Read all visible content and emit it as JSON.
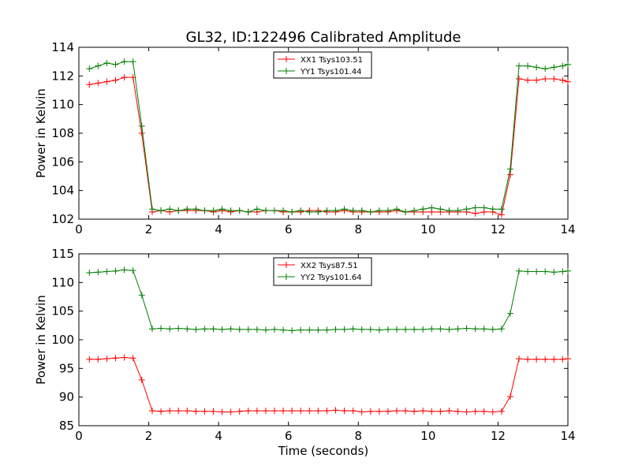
{
  "title": "GL32, ID:122496 Calibrated Amplitude",
  "colors": {
    "red": "#ff0000",
    "green": "#007f00"
  },
  "chart_data": [
    {
      "type": "line",
      "title": "GL32, ID:122496 Calibrated Amplitude",
      "xlabel": "",
      "ylabel": "Power in Kelvin",
      "xlim": [
        0,
        14
      ],
      "ylim": [
        102,
        114
      ],
      "xticks": [
        "0",
        "2",
        "4",
        "6",
        "8",
        "10",
        "12",
        "14"
      ],
      "yticks": [
        "102",
        "104",
        "106",
        "108",
        "110",
        "112",
        "114"
      ],
      "legend_position": "top-center",
      "x": [
        0.3,
        0.55,
        0.8,
        1.05,
        1.3,
        1.55,
        1.8,
        2.1,
        2.35,
        2.6,
        2.85,
        3.1,
        3.35,
        3.6,
        3.85,
        4.1,
        4.35,
        4.6,
        4.85,
        5.1,
        5.35,
        5.6,
        5.85,
        6.1,
        6.35,
        6.6,
        6.85,
        7.1,
        7.35,
        7.6,
        7.85,
        8.1,
        8.35,
        8.6,
        8.85,
        9.1,
        9.35,
        9.6,
        9.85,
        10.1,
        10.35,
        10.6,
        10.85,
        11.1,
        11.35,
        11.6,
        11.85,
        12.1,
        12.35,
        12.6,
        12.85,
        13.1,
        13.35,
        13.6,
        13.85,
        14.0
      ],
      "series": [
        {
          "name": "XX1 Tsys103.51",
          "color": "#ff0000",
          "values": [
            111.4,
            111.5,
            111.6,
            111.7,
            111.9,
            111.9,
            108.0,
            102.5,
            102.6,
            102.5,
            102.6,
            102.6,
            102.6,
            102.6,
            102.5,
            102.6,
            102.5,
            102.6,
            102.5,
            102.5,
            102.6,
            102.6,
            102.5,
            102.5,
            102.5,
            102.6,
            102.6,
            102.5,
            102.5,
            102.6,
            102.5,
            102.5,
            102.5,
            102.5,
            102.5,
            102.6,
            102.5,
            102.5,
            102.5,
            102.5,
            102.5,
            102.5,
            102.5,
            102.5,
            102.4,
            102.5,
            102.5,
            102.3,
            105.1,
            111.8,
            111.7,
            111.7,
            111.8,
            111.8,
            111.7,
            111.6
          ]
        },
        {
          "name": "YY1 Tsys101.44",
          "color": "#007f00",
          "values": [
            112.5,
            112.7,
            112.9,
            112.8,
            113.0,
            113.0,
            108.5,
            102.7,
            102.6,
            102.7,
            102.6,
            102.7,
            102.7,
            102.6,
            102.6,
            102.7,
            102.6,
            102.6,
            102.5,
            102.7,
            102.6,
            102.6,
            102.6,
            102.5,
            102.6,
            102.5,
            102.5,
            102.6,
            102.6,
            102.7,
            102.6,
            102.6,
            102.5,
            102.6,
            102.6,
            102.7,
            102.5,
            102.6,
            102.7,
            102.8,
            102.7,
            102.6,
            102.6,
            102.7,
            102.8,
            102.8,
            102.7,
            102.7,
            105.5,
            112.7,
            112.7,
            112.6,
            112.5,
            112.6,
            112.7,
            112.8
          ]
        }
      ]
    },
    {
      "type": "line",
      "title": "",
      "xlabel": "Time (seconds)",
      "ylabel": "Power in Kelvin",
      "xlim": [
        0,
        14
      ],
      "ylim": [
        85,
        115
      ],
      "xticks": [
        "0",
        "2",
        "4",
        "6",
        "8",
        "10",
        "12",
        "14"
      ],
      "yticks": [
        "85",
        "90",
        "95",
        "100",
        "105",
        "110",
        "115"
      ],
      "legend_position": "top-center",
      "x": [
        0.3,
        0.55,
        0.8,
        1.05,
        1.3,
        1.55,
        1.8,
        2.1,
        2.35,
        2.6,
        2.85,
        3.1,
        3.35,
        3.6,
        3.85,
        4.1,
        4.35,
        4.6,
        4.85,
        5.1,
        5.35,
        5.6,
        5.85,
        6.1,
        6.35,
        6.6,
        6.85,
        7.1,
        7.35,
        7.6,
        7.85,
        8.1,
        8.35,
        8.6,
        8.85,
        9.1,
        9.35,
        9.6,
        9.85,
        10.1,
        10.35,
        10.6,
        10.85,
        11.1,
        11.35,
        11.6,
        11.85,
        12.1,
        12.35,
        12.6,
        12.85,
        13.1,
        13.35,
        13.6,
        13.85,
        14.0
      ],
      "series": [
        {
          "name": "XX2 Tsys87.51",
          "color": "#ff0000",
          "values": [
            96.6,
            96.6,
            96.7,
            96.8,
            96.9,
            96.8,
            93.0,
            87.6,
            87.5,
            87.6,
            87.6,
            87.6,
            87.5,
            87.5,
            87.5,
            87.4,
            87.4,
            87.5,
            87.6,
            87.6,
            87.6,
            87.6,
            87.6,
            87.6,
            87.6,
            87.6,
            87.6,
            87.6,
            87.7,
            87.6,
            87.6,
            87.4,
            87.5,
            87.5,
            87.5,
            87.6,
            87.6,
            87.5,
            87.6,
            87.5,
            87.5,
            87.6,
            87.5,
            87.4,
            87.5,
            87.5,
            87.4,
            87.5,
            90.1,
            96.7,
            96.6,
            96.6,
            96.6,
            96.6,
            96.6,
            96.7
          ]
        },
        {
          "name": "YY2 Tsys101.64",
          "color": "#007f00",
          "values": [
            111.7,
            111.8,
            111.9,
            112.0,
            112.2,
            112.1,
            107.8,
            101.9,
            102.0,
            101.9,
            102.0,
            101.9,
            101.8,
            101.9,
            101.9,
            101.8,
            101.9,
            101.8,
            101.8,
            101.8,
            101.7,
            101.8,
            101.7,
            101.6,
            101.7,
            101.7,
            101.7,
            101.7,
            101.8,
            101.8,
            101.9,
            101.8,
            101.8,
            101.7,
            101.8,
            101.8,
            101.8,
            101.8,
            101.8,
            101.9,
            101.9,
            101.8,
            101.9,
            102.0,
            101.9,
            101.9,
            101.8,
            101.9,
            104.6,
            112.0,
            111.9,
            111.9,
            111.9,
            111.8,
            111.9,
            112.0
          ]
        }
      ]
    }
  ]
}
